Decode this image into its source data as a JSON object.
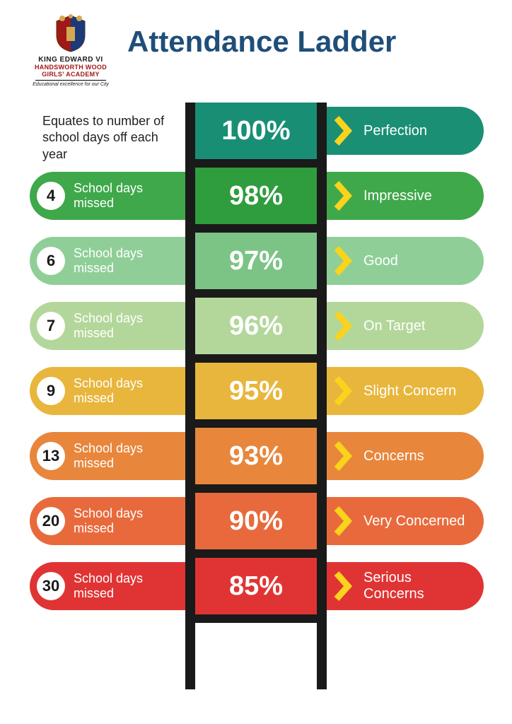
{
  "title": "Attendance Ladder",
  "title_color": "#1f4e79",
  "logo": {
    "line1": "KING EDWARD VI",
    "line2": "HANDSWORTH WOOD",
    "line3": "GIRLS' ACADEMY",
    "tagline": "Educational excellence for our City"
  },
  "subtitle": "Equates to number of school days off each year",
  "ladder_rail_color": "#1a1a1a",
  "chevron_color": "#f9d31c",
  "badge_bg": "#ffffff",
  "badge_text_color": "#1a1a1a",
  "rung_height": 80,
  "rung_gap": 12,
  "days_missed_label": "School days missed",
  "rungs": [
    {
      "percent": "100%",
      "days": null,
      "status": "Perfection",
      "center_color": "#188f74",
      "side_color": "#1a8f74",
      "left_visible": false
    },
    {
      "percent": "98%",
      "days": "4",
      "status": "Impressive",
      "center_color": "#2f9c3e",
      "side_color": "#3fa84a",
      "left_visible": true
    },
    {
      "percent": "97%",
      "days": "6",
      "status": "Good",
      "center_color": "#7cc486",
      "side_color": "#8fcf97",
      "left_visible": true
    },
    {
      "percent": "96%",
      "days": "7",
      "status": "On Target",
      "center_color": "#b3d79a",
      "side_color": "#b3d79a",
      "left_visible": true
    },
    {
      "percent": "95%",
      "days": "9",
      "status": "Slight Concern",
      "center_color": "#e8b63c",
      "side_color": "#e8b63c",
      "left_visible": true
    },
    {
      "percent": "93%",
      "days": "13",
      "status": "Concerns",
      "center_color": "#e8863c",
      "side_color": "#e8863c",
      "left_visible": true
    },
    {
      "percent": "90%",
      "days": "20",
      "status": "Very Concerned",
      "center_color": "#e86a3c",
      "side_color": "#e86a3c",
      "left_visible": true
    },
    {
      "percent": "85%",
      "days": "30",
      "status": "Serious Concerns",
      "center_color": "#e03434",
      "side_color": "#e03434",
      "left_visible": true
    }
  ]
}
